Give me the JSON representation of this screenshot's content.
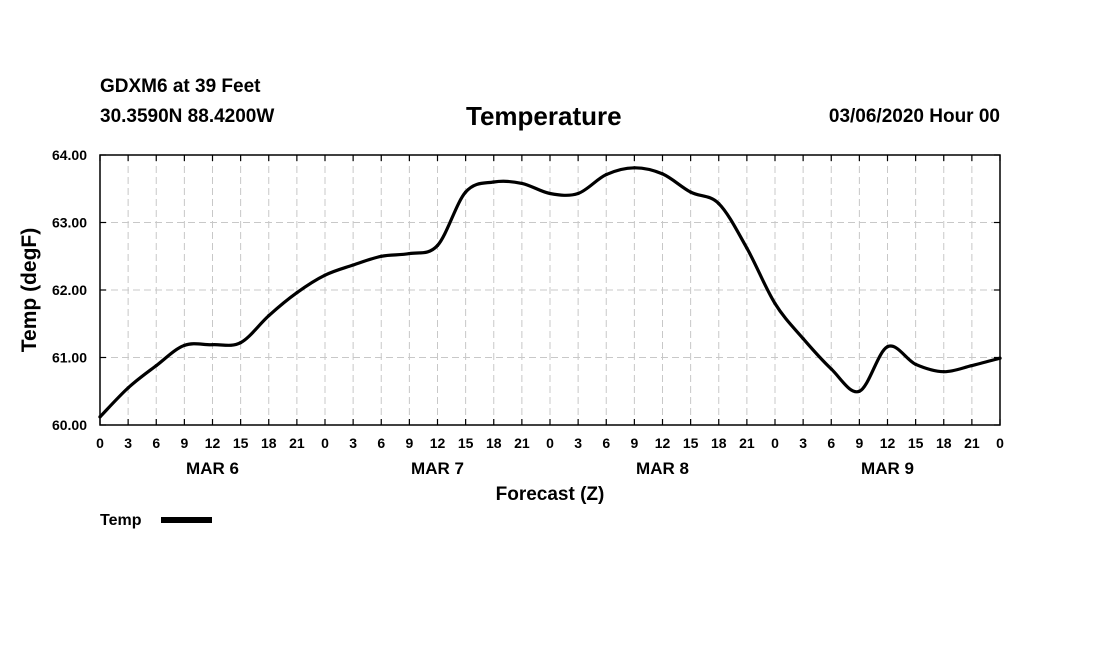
{
  "header": {
    "station": "GDXM6 at 39 Feet",
    "coords": "30.3590N 88.4200W",
    "datetime": "03/06/2020 Hour 00"
  },
  "chart_data": {
    "type": "line",
    "title": "Temperature",
    "xlabel": "Forecast (Z)",
    "ylabel": "Temp (degF)",
    "ylim": [
      60,
      64
    ],
    "xlim": [
      0,
      96
    ],
    "grid": true,
    "y_ticks": [
      "60.00",
      "61.00",
      "62.00",
      "63.00",
      "64.00"
    ],
    "x_ticks": [
      "0",
      "3",
      "6",
      "9",
      "12",
      "15",
      "18",
      "21",
      "0",
      "3",
      "6",
      "9",
      "12",
      "15",
      "18",
      "21",
      "0",
      "3",
      "6",
      "9",
      "12",
      "15",
      "18",
      "21",
      "0",
      "3",
      "6",
      "9",
      "12",
      "15",
      "18",
      "21",
      "0"
    ],
    "day_labels": [
      {
        "label": "MAR 6",
        "hour": 12
      },
      {
        "label": "MAR 7",
        "hour": 36
      },
      {
        "label": "MAR 8",
        "hour": 60
      },
      {
        "label": "MAR 9",
        "hour": 84
      }
    ],
    "legend": {
      "label": "Temp",
      "placement": "bottom-left"
    },
    "series": [
      {
        "name": "Temp",
        "x": [
          0,
          3,
          6,
          9,
          12,
          15,
          18,
          21,
          24,
          27,
          30,
          33,
          36,
          39,
          42,
          45,
          48,
          51,
          54,
          57,
          60,
          63,
          66,
          69,
          72,
          75,
          78,
          81,
          84,
          87,
          90,
          93,
          96
        ],
        "values": [
          60.12,
          60.55,
          60.88,
          61.18,
          61.19,
          61.22,
          61.62,
          61.96,
          62.22,
          62.37,
          62.5,
          62.54,
          62.66,
          63.45,
          63.6,
          63.58,
          63.43,
          63.43,
          63.71,
          63.81,
          63.72,
          63.45,
          63.28,
          62.62,
          61.8,
          61.28,
          60.83,
          60.5,
          61.16,
          60.9,
          60.79,
          60.88,
          60.99
        ]
      }
    ]
  }
}
